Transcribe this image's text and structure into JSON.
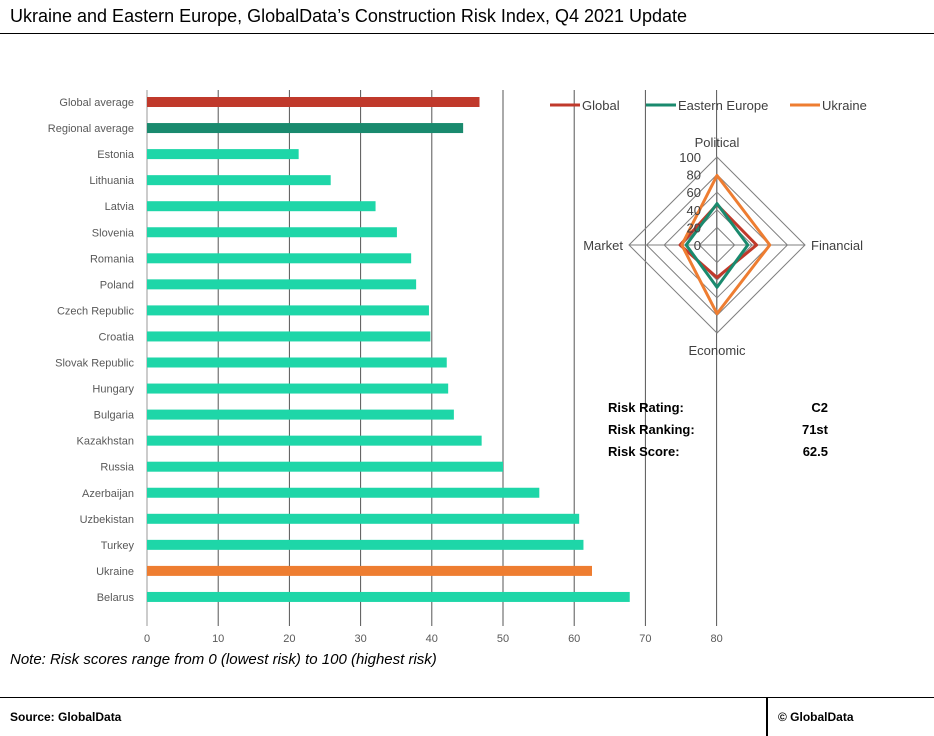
{
  "title": "Ukraine and Eastern Europe, GlobalData’s Construction Risk Index, Q4 2021 Update",
  "note": "Note: Risk scores range from 0 (lowest risk) to 100 (highest risk)",
  "footer": {
    "source": "Source:  GlobalData",
    "copyright": "© GlobalData"
  },
  "risk_summary": [
    {
      "label": "Risk Rating:",
      "value": "C2"
    },
    {
      "label": "Risk Ranking:",
      "value": "71st"
    },
    {
      "label": "Risk Score:",
      "value": "62.5"
    }
  ],
  "colors": {
    "global": "#c0392b",
    "regional": "#1a8a6e",
    "country": "#1ed6a8",
    "ukraine": "#ee7d31",
    "grid": "#555555",
    "text": "#595959"
  },
  "chart_data": [
    {
      "type": "bar",
      "orientation": "horizontal",
      "categories": [
        "Global average",
        "Regional average",
        "Estonia",
        "Lithuania",
        "Latvia",
        "Slovenia",
        "Romania",
        "Poland",
        "Czech Republic",
        "Croatia",
        "Slovak Republic",
        "Hungary",
        "Bulgaria",
        "Kazakhstan",
        "Russia",
        "Azerbaijan",
        "Uzbekistan",
        "Turkey",
        "Ukraine",
        "Belarus"
      ],
      "values": [
        46.7,
        44.4,
        21.3,
        25.8,
        32.1,
        35.1,
        37.1,
        37.8,
        39.6,
        39.8,
        42.1,
        42.3,
        43.1,
        47.0,
        50.0,
        55.1,
        60.7,
        61.3,
        62.5,
        67.8
      ],
      "highlight": {
        "Global average": "global",
        "Regional average": "regional",
        "Ukraine": "ukraine"
      },
      "xlim": [
        0,
        80
      ],
      "xticks": [
        "0",
        "10",
        "20",
        "30",
        "40",
        "50",
        "60",
        "70",
        "80"
      ],
      "grid": "vertical"
    },
    {
      "type": "radar",
      "axes": [
        "Political",
        "Financial",
        "Economic",
        "Market"
      ],
      "ticks": [
        "0",
        "20",
        "40",
        "60",
        "80",
        "100"
      ],
      "range": [
        0,
        100
      ],
      "legend_position": "top",
      "series": [
        {
          "name": "Global",
          "values": [
            46,
            45,
            37,
            42
          ],
          "color": "global"
        },
        {
          "name": "Eastern Europe",
          "values": [
            47,
            35,
            48,
            35
          ],
          "color": "regional"
        },
        {
          "name": "Ukraine",
          "values": [
            79,
            60,
            78,
            40
          ],
          "color": "ukraine"
        }
      ]
    }
  ]
}
